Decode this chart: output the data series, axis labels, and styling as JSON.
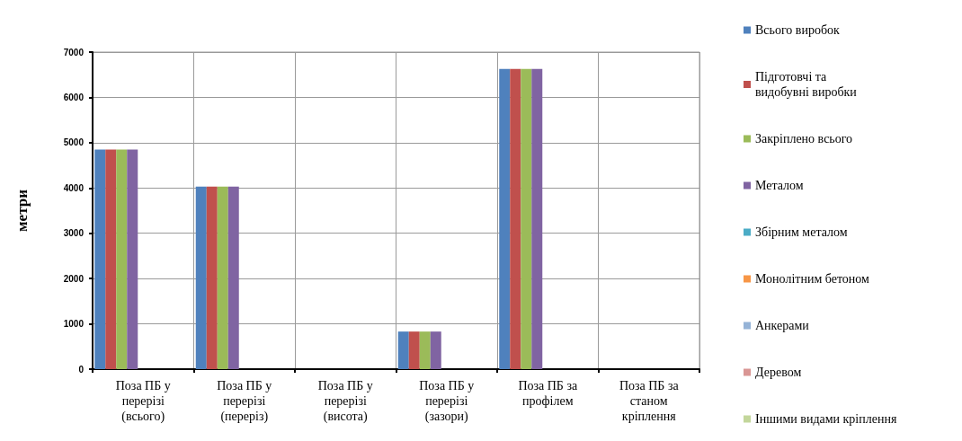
{
  "chart_data": {
    "type": "bar",
    "ylabel": "метри",
    "categories": [
      "Поза ПБ у перерізі (всього)",
      "Поза ПБ у перерізі (переріз)",
      "Поза ПБ у перерізі (висота)",
      "Поза ПБ у перерізі (зазори)",
      "Поза ПБ за профілем",
      "Поза ПБ за станом кріплення"
    ],
    "series": [
      {
        "name": "Всього виробок",
        "color": "#4f81bd",
        "values": [
          4850,
          4030,
          0,
          830,
          6630,
          0
        ]
      },
      {
        "name": "Підготовчі та видобувні виробки",
        "color": "#c0504d",
        "values": [
          4850,
          4030,
          0,
          830,
          6630,
          0
        ]
      },
      {
        "name": "Закріплено всього",
        "color": "#9bbb59",
        "values": [
          4850,
          4030,
          0,
          830,
          6630,
          0
        ]
      },
      {
        "name": "Металом",
        "color": "#8064a2",
        "values": [
          4850,
          4030,
          0,
          830,
          6630,
          0
        ]
      },
      {
        "name": "Збірним металом",
        "color": "#4bacc6",
        "values": [
          0,
          0,
          0,
          0,
          0,
          0
        ]
      },
      {
        "name": "Монолітним бетоном",
        "color": "#f79646",
        "values": [
          0,
          0,
          0,
          0,
          0,
          0
        ]
      },
      {
        "name": "Анкерами",
        "color": "#95b3d7",
        "values": [
          0,
          0,
          0,
          0,
          0,
          0
        ]
      },
      {
        "name": "Деревом",
        "color": "#d99694",
        "values": [
          0,
          0,
          0,
          0,
          0,
          0
        ]
      },
      {
        "name": "Іншими видами кріплення",
        "color": "#c3d69b",
        "values": [
          0,
          0,
          0,
          0,
          0,
          0
        ]
      }
    ],
    "ylim": [
      0,
      7000
    ],
    "yticks": [
      0,
      1000,
      2000,
      3000,
      4000,
      5000,
      6000,
      7000
    ],
    "grid": true,
    "legend": "right"
  }
}
